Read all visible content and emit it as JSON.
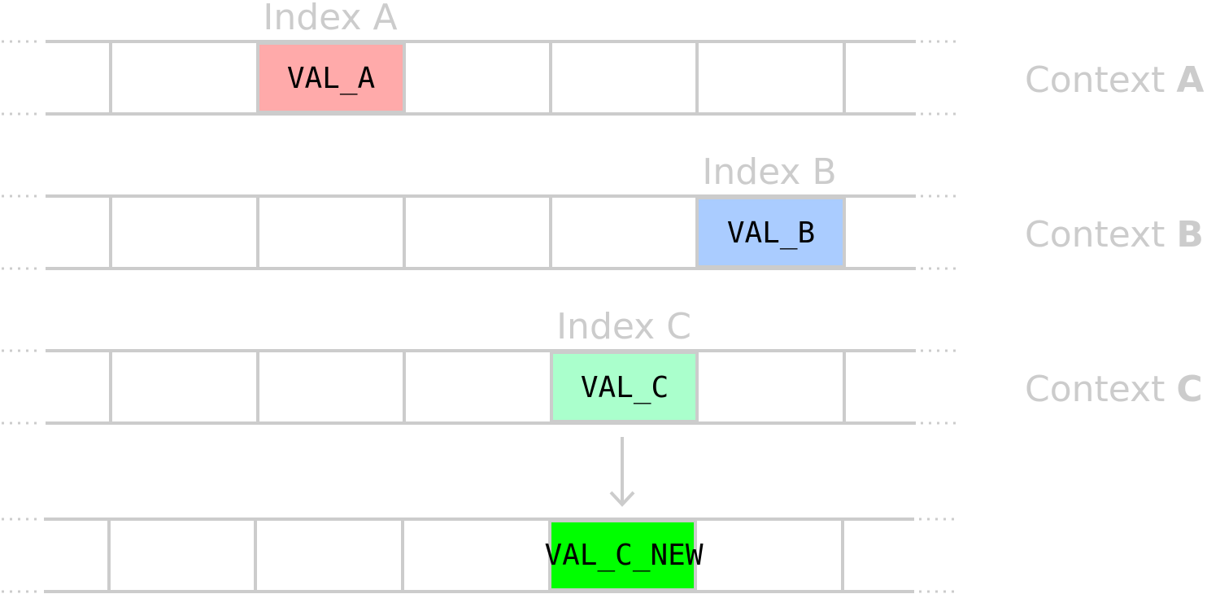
{
  "rows": [
    {
      "id": "a",
      "index_label": "Index A",
      "value": "VAL_A",
      "highlight_color": "#ffaaaa",
      "context_prefix": "Context",
      "context_letter": "A"
    },
    {
      "id": "b",
      "index_label": "Index B",
      "value": "VAL_B",
      "highlight_color": "#aaccff",
      "context_prefix": "Context",
      "context_letter": "B"
    },
    {
      "id": "c",
      "index_label": "Index C",
      "value": "VAL_C",
      "highlight_color": "#aaffcc",
      "context_prefix": "Context",
      "context_letter": "C"
    },
    {
      "id": "result",
      "index_label": "",
      "value": "VAL_C_NEW",
      "highlight_color": "#00ff00",
      "context_prefix": "",
      "context_letter": ""
    }
  ],
  "colors": {
    "grid": "#cccccc",
    "label": "#cccccc",
    "value_text": "#000000"
  }
}
